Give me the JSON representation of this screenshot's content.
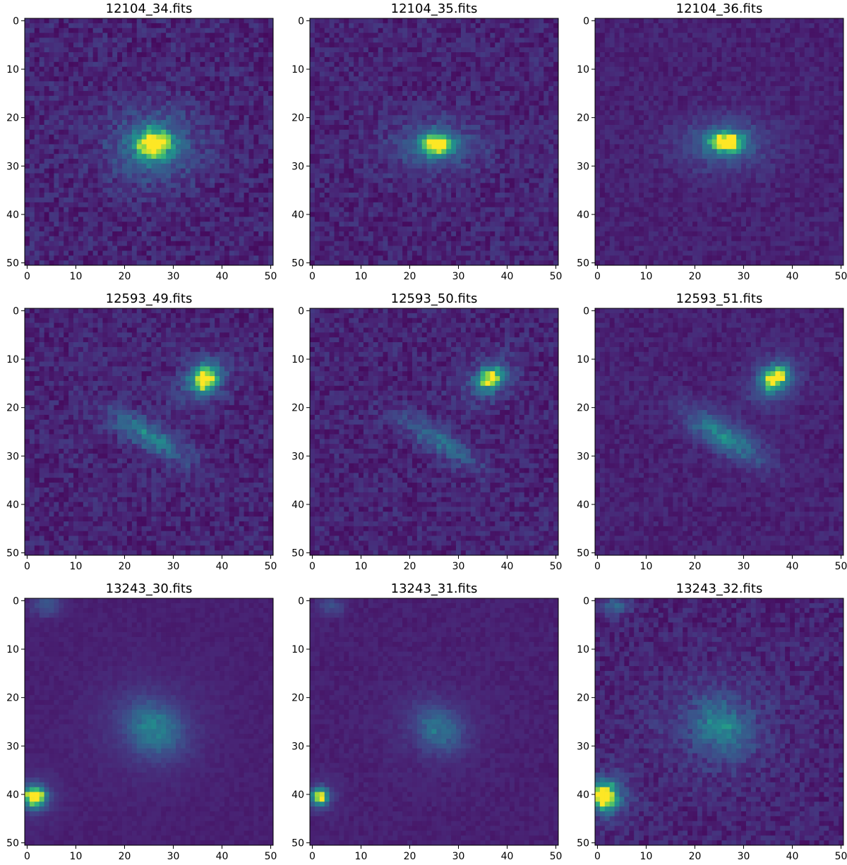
{
  "colormap": "viridis",
  "panel_order": [
    "12104_34",
    "12104_35",
    "12104_36",
    "12593_49",
    "12593_50",
    "12593_51",
    "13243_30",
    "13243_31",
    "13243_32"
  ],
  "chart_data": [
    {
      "type": "heatmap",
      "title": "12104_34.fits",
      "xlabel": "",
      "ylabel": "",
      "xlim": [
        0,
        50
      ],
      "ylim": [
        50,
        0
      ],
      "xticks": [
        0,
        10,
        20,
        30,
        40,
        50
      ],
      "yticks": [
        0,
        10,
        20,
        30,
        40,
        50
      ],
      "grid": false,
      "image_size": [
        51,
        51
      ],
      "background": 0.1,
      "noise": 0.12,
      "sources": [
        {
          "x": 26,
          "y": 25.5,
          "peak": 0.82,
          "sx": 2.6,
          "sy": 2.1,
          "angle": 0
        },
        {
          "x": 26,
          "y": 26,
          "peak": 0.3,
          "sx": 6.5,
          "sy": 5.5,
          "angle": 0
        }
      ]
    },
    {
      "type": "heatmap",
      "title": "12104_35.fits",
      "xlabel": "",
      "ylabel": "",
      "xlim": [
        0,
        50
      ],
      "ylim": [
        50,
        0
      ],
      "xticks": [
        0,
        10,
        20,
        30,
        40,
        50
      ],
      "yticks": [
        0,
        10,
        20,
        30,
        40,
        50
      ],
      "grid": false,
      "image_size": [
        51,
        51
      ],
      "background": 0.1,
      "noise": 0.11,
      "sources": [
        {
          "x": 25.5,
          "y": 25.5,
          "peak": 0.85,
          "sx": 2.2,
          "sy": 1.5,
          "angle": 0
        },
        {
          "x": 25.5,
          "y": 26,
          "peak": 0.25,
          "sx": 6.5,
          "sy": 3.8,
          "angle": 0
        }
      ]
    },
    {
      "type": "heatmap",
      "title": "12104_36.fits",
      "xlabel": "",
      "ylabel": "",
      "xlim": [
        0,
        50
      ],
      "ylim": [
        50,
        0
      ],
      "xticks": [
        0,
        10,
        20,
        30,
        40,
        50
      ],
      "yticks": [
        0,
        10,
        20,
        30,
        40,
        50
      ],
      "grid": false,
      "image_size": [
        51,
        51
      ],
      "background": 0.1,
      "noise": 0.07,
      "sources": [
        {
          "x": 26.5,
          "y": 25,
          "peak": 0.85,
          "sx": 2.4,
          "sy": 1.5,
          "angle": 0
        },
        {
          "x": 26,
          "y": 25.5,
          "peak": 0.25,
          "sx": 6.5,
          "sy": 3.8,
          "angle": 0
        }
      ]
    },
    {
      "type": "heatmap",
      "title": "12593_49.fits",
      "xlabel": "",
      "ylabel": "",
      "xlim": [
        0,
        50
      ],
      "ylim": [
        50,
        0
      ],
      "xticks": [
        0,
        10,
        20,
        30,
        40,
        50
      ],
      "yticks": [
        0,
        10,
        20,
        30,
        40,
        50
      ],
      "grid": false,
      "image_size": [
        51,
        51
      ],
      "background": 0.1,
      "noise": 0.11,
      "sources": [
        {
          "x": 36.5,
          "y": 14,
          "peak": 0.85,
          "sx": 2.0,
          "sy": 1.7,
          "angle": -40
        },
        {
          "x": 36,
          "y": 14.5,
          "peak": 0.2,
          "sx": 4.5,
          "sy": 3.3,
          "angle": -40
        },
        {
          "x": 25,
          "y": 26,
          "peak": 0.4,
          "sx": 6.5,
          "sy": 2.0,
          "angle": 32
        }
      ]
    },
    {
      "type": "heatmap",
      "title": "12593_50.fits",
      "xlabel": "",
      "ylabel": "",
      "xlim": [
        0,
        50
      ],
      "ylim": [
        50,
        0
      ],
      "xticks": [
        0,
        10,
        20,
        30,
        40,
        50
      ],
      "yticks": [
        0,
        10,
        20,
        30,
        40,
        50
      ],
      "grid": false,
      "image_size": [
        51,
        51
      ],
      "background": 0.1,
      "noise": 0.11,
      "sources": [
        {
          "x": 36.5,
          "y": 14,
          "peak": 0.75,
          "sx": 2.0,
          "sy": 1.5,
          "angle": -35
        },
        {
          "x": 36,
          "y": 14.5,
          "peak": 0.18,
          "sx": 4.3,
          "sy": 3.0,
          "angle": -35
        },
        {
          "x": 26,
          "y": 27,
          "peak": 0.32,
          "sx": 6.5,
          "sy": 1.8,
          "angle": 32
        }
      ]
    },
    {
      "type": "heatmap",
      "title": "12593_51.fits",
      "xlabel": "",
      "ylabel": "",
      "xlim": [
        0,
        50
      ],
      "ylim": [
        50,
        0
      ],
      "xticks": [
        0,
        10,
        20,
        30,
        40,
        50
      ],
      "yticks": [
        0,
        10,
        20,
        30,
        40,
        50
      ],
      "grid": false,
      "image_size": [
        51,
        51
      ],
      "background": 0.1,
      "noise": 0.07,
      "sources": [
        {
          "x": 36.5,
          "y": 14,
          "peak": 0.85,
          "sx": 2.0,
          "sy": 1.6,
          "angle": -40
        },
        {
          "x": 36,
          "y": 14.5,
          "peak": 0.2,
          "sx": 4.5,
          "sy": 3.2,
          "angle": -40
        },
        {
          "x": 26,
          "y": 26,
          "peak": 0.42,
          "sx": 6.5,
          "sy": 2.2,
          "angle": 32
        }
      ]
    },
    {
      "type": "heatmap",
      "title": "13243_30.fits",
      "xlabel": "",
      "ylabel": "",
      "xlim": [
        0,
        50
      ],
      "ylim": [
        50,
        0
      ],
      "xticks": [
        0,
        10,
        20,
        30,
        40,
        50
      ],
      "yticks": [
        0,
        10,
        20,
        30,
        40,
        50
      ],
      "grid": false,
      "image_size": [
        51,
        51
      ],
      "background": 0.1,
      "noise": 0.03,
      "sources": [
        {
          "x": 1.5,
          "y": 40.5,
          "peak": 0.95,
          "sx": 1.6,
          "sy": 1.5,
          "angle": 0
        },
        {
          "x": 1.5,
          "y": 40.5,
          "peak": 0.12,
          "sx": 3.5,
          "sy": 3.5,
          "angle": 0
        },
        {
          "x": 26,
          "y": 26.5,
          "peak": 0.38,
          "sx": 4.2,
          "sy": 3.4,
          "angle": 40
        },
        {
          "x": 25,
          "y": 26,
          "peak": 0.08,
          "sx": 9.0,
          "sy": 8.0,
          "angle": 0
        },
        {
          "x": 4,
          "y": 1,
          "peak": 0.22,
          "sx": 2.2,
          "sy": 1.6,
          "angle": 0
        }
      ]
    },
    {
      "type": "heatmap",
      "title": "13243_31.fits",
      "xlabel": "",
      "ylabel": "",
      "xlim": [
        0,
        50
      ],
      "ylim": [
        50,
        0
      ],
      "xticks": [
        0,
        10,
        20,
        30,
        40,
        50
      ],
      "yticks": [
        0,
        10,
        20,
        30,
        40,
        50
      ],
      "grid": false,
      "image_size": [
        51,
        51
      ],
      "background": 0.1,
      "noise": 0.04,
      "sources": [
        {
          "x": 1.5,
          "y": 40.5,
          "peak": 0.9,
          "sx": 1.2,
          "sy": 1.2,
          "angle": 0
        },
        {
          "x": 1.5,
          "y": 40.5,
          "peak": 0.1,
          "sx": 2.8,
          "sy": 2.8,
          "angle": 0
        },
        {
          "x": 26,
          "y": 26.5,
          "peak": 0.32,
          "sx": 3.6,
          "sy": 2.8,
          "angle": 40
        },
        {
          "x": 25,
          "y": 26,
          "peak": 0.06,
          "sx": 7.5,
          "sy": 6.5,
          "angle": 0
        },
        {
          "x": 4,
          "y": 1,
          "peak": 0.2,
          "sx": 1.8,
          "sy": 1.4,
          "angle": 0
        }
      ]
    },
    {
      "type": "heatmap",
      "title": "13243_32.fits",
      "xlabel": "",
      "ylabel": "",
      "xlim": [
        0,
        50
      ],
      "ylim": [
        50,
        0
      ],
      "xticks": [
        0,
        10,
        20,
        30,
        40,
        50
      ],
      "yticks": [
        0,
        10,
        20,
        30,
        40,
        50
      ],
      "grid": false,
      "image_size": [
        51,
        51
      ],
      "background": 0.1,
      "noise": 0.1,
      "sources": [
        {
          "x": 1.5,
          "y": 40.5,
          "peak": 0.9,
          "sx": 1.7,
          "sy": 1.8,
          "angle": 0
        },
        {
          "x": 2,
          "y": 40.5,
          "peak": 0.25,
          "sx": 3.5,
          "sy": 3.5,
          "angle": 0
        },
        {
          "x": 25.5,
          "y": 26,
          "peak": 0.32,
          "sx": 4.0,
          "sy": 3.2,
          "angle": 40
        },
        {
          "x": 25,
          "y": 26,
          "peak": 0.14,
          "sx": 8.0,
          "sy": 7.0,
          "angle": 0
        },
        {
          "x": 3.5,
          "y": 1,
          "peak": 0.25,
          "sx": 2.0,
          "sy": 1.5,
          "angle": 0
        }
      ]
    }
  ]
}
